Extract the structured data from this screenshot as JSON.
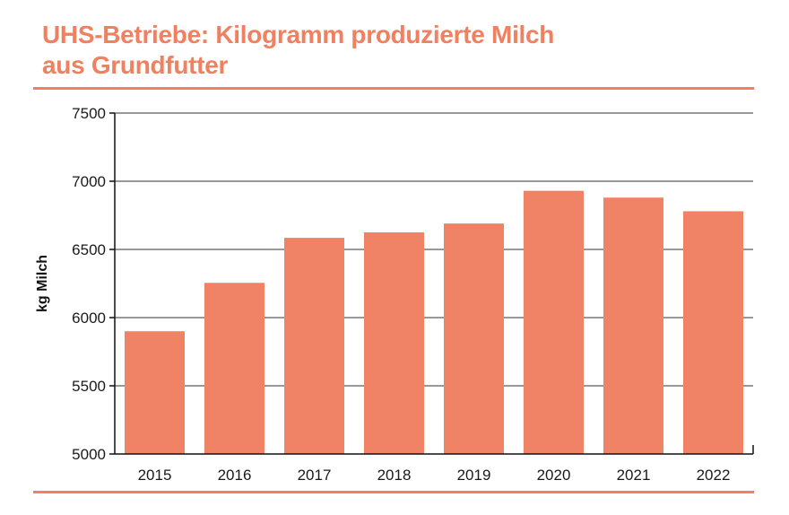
{
  "chart_data": {
    "type": "bar",
    "title_line1": "UHS-Betriebe: Kilogramm produzierte Milch",
    "title_line2": "aus Grundfutter",
    "xlabel": "",
    "ylabel": "kg Milch",
    "categories": [
      "2015",
      "2016",
      "2017",
      "2018",
      "2019",
      "2020",
      "2021",
      "2022"
    ],
    "values": [
      5900,
      6255,
      6585,
      6625,
      6690,
      6930,
      6880,
      6780
    ],
    "ylim": [
      5000,
      7500
    ],
    "yticks": [
      5000,
      5500,
      6000,
      6500,
      7000,
      7500
    ],
    "grid": true,
    "legend": "none",
    "bar_color": "#f08266",
    "accent_color": "#f0805f"
  }
}
